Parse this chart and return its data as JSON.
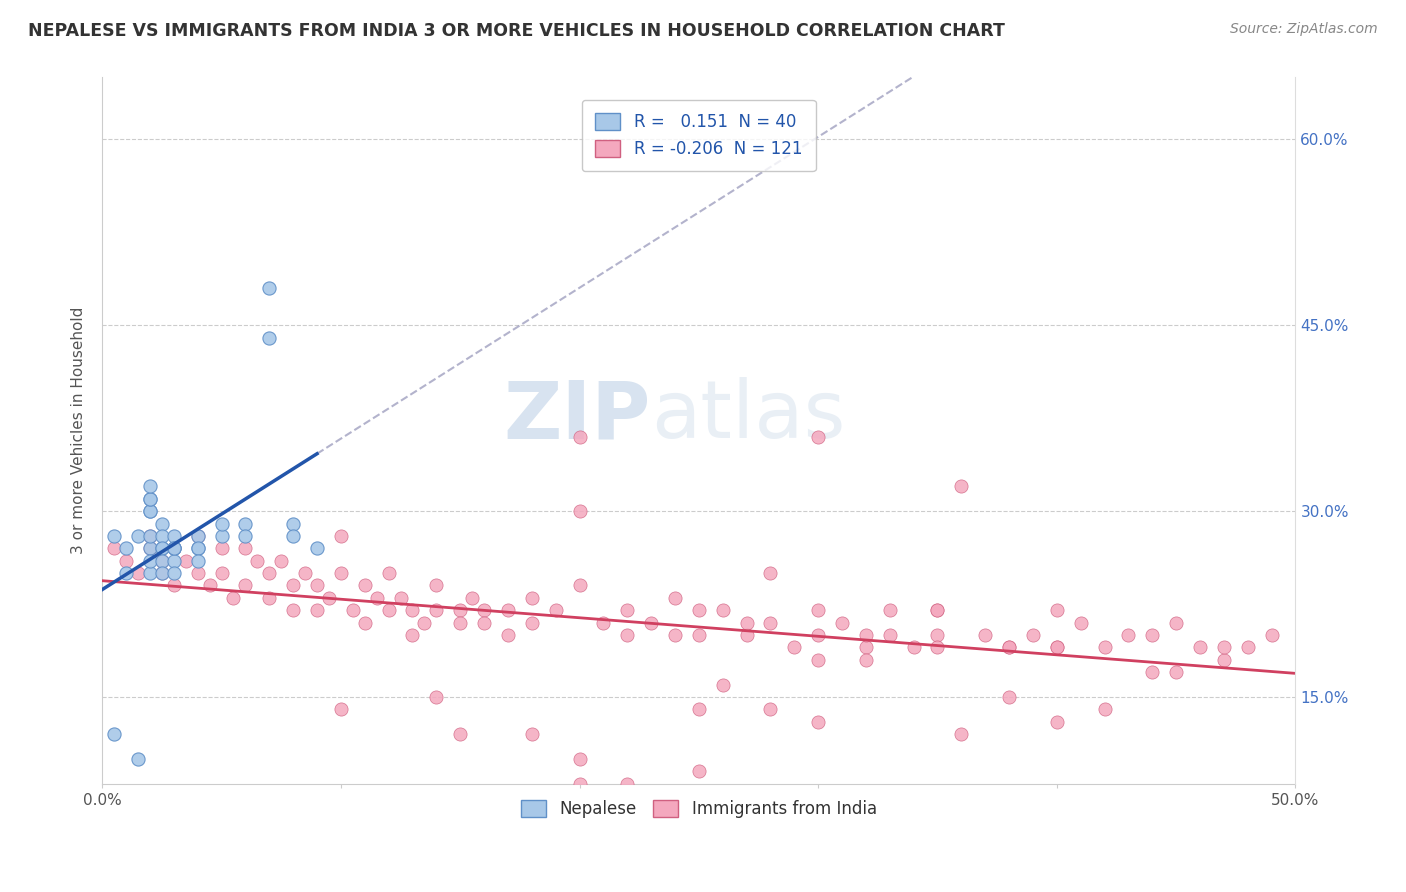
{
  "title": "NEPALESE VS IMMIGRANTS FROM INDIA 3 OR MORE VEHICLES IN HOUSEHOLD CORRELATION CHART",
  "source": "Source: ZipAtlas.com",
  "ylabel": "3 or more Vehicles in Household",
  "x_min": 0.0,
  "x_max": 0.5,
  "y_min": 0.08,
  "y_max": 0.65,
  "x_ticks": [
    0.0,
    0.1,
    0.2,
    0.3,
    0.4,
    0.5
  ],
  "x_tick_labels": [
    "0.0%",
    "",
    "",
    "",
    "",
    "50.0%"
  ],
  "y_ticks": [
    0.15,
    0.3,
    0.45,
    0.6
  ],
  "y_tick_labels": [
    "15.0%",
    "30.0%",
    "45.0%",
    "60.0%"
  ],
  "nepalese_color": "#a8c8e8",
  "india_color": "#f4a8be",
  "nepalese_edge_color": "#6090c8",
  "india_edge_color": "#d06080",
  "nepalese_trend_color": "#2255aa",
  "india_trend_color": "#d04060",
  "dashed_trend_color": "#a0a0c0",
  "r_nepalese": 0.151,
  "n_nepalese": 40,
  "r_india": -0.206,
  "n_india": 121,
  "legend_nepalese": "Nepalese",
  "legend_india": "Immigrants from India",
  "watermark_zip": "ZIP",
  "watermark_atlas": "atlas",
  "nepalese_x": [
    0.005,
    0.01,
    0.01,
    0.015,
    0.015,
    0.02,
    0.02,
    0.02,
    0.02,
    0.02,
    0.02,
    0.02,
    0.02,
    0.02,
    0.025,
    0.025,
    0.025,
    0.025,
    0.025,
    0.025,
    0.03,
    0.03,
    0.03,
    0.03,
    0.03,
    0.03,
    0.04,
    0.04,
    0.04,
    0.04,
    0.05,
    0.05,
    0.06,
    0.06,
    0.07,
    0.07,
    0.08,
    0.08,
    0.09,
    0.005
  ],
  "nepalese_y": [
    0.28,
    0.25,
    0.27,
    0.28,
    0.1,
    0.25,
    0.27,
    0.28,
    0.3,
    0.3,
    0.31,
    0.31,
    0.32,
    0.26,
    0.27,
    0.29,
    0.28,
    0.27,
    0.26,
    0.25,
    0.27,
    0.28,
    0.27,
    0.26,
    0.25,
    0.27,
    0.27,
    0.28,
    0.27,
    0.26,
    0.28,
    0.29,
    0.29,
    0.28,
    0.48,
    0.44,
    0.29,
    0.28,
    0.27,
    0.12
  ],
  "india_x": [
    0.005,
    0.01,
    0.015,
    0.02,
    0.02,
    0.025,
    0.025,
    0.03,
    0.03,
    0.035,
    0.04,
    0.04,
    0.045,
    0.05,
    0.05,
    0.055,
    0.06,
    0.06,
    0.065,
    0.07,
    0.07,
    0.075,
    0.08,
    0.08,
    0.085,
    0.09,
    0.09,
    0.095,
    0.1,
    0.1,
    0.105,
    0.11,
    0.11,
    0.115,
    0.12,
    0.12,
    0.125,
    0.13,
    0.13,
    0.135,
    0.14,
    0.14,
    0.15,
    0.15,
    0.155,
    0.16,
    0.16,
    0.17,
    0.17,
    0.18,
    0.18,
    0.19,
    0.2,
    0.2,
    0.21,
    0.22,
    0.22,
    0.23,
    0.24,
    0.24,
    0.25,
    0.25,
    0.26,
    0.27,
    0.27,
    0.28,
    0.29,
    0.3,
    0.3,
    0.31,
    0.32,
    0.33,
    0.33,
    0.34,
    0.35,
    0.36,
    0.37,
    0.38,
    0.39,
    0.4,
    0.4,
    0.41,
    0.42,
    0.43,
    0.44,
    0.45,
    0.46,
    0.47,
    0.48,
    0.49,
    0.1,
    0.15,
    0.2,
    0.25,
    0.3,
    0.35,
    0.2,
    0.3,
    0.35,
    0.4,
    0.25,
    0.35,
    0.4,
    0.45,
    0.3,
    0.38,
    0.42,
    0.47,
    0.28,
    0.32,
    0.22,
    0.18,
    0.14,
    0.2,
    0.26,
    0.32,
    0.38,
    0.44,
    0.2,
    0.28,
    0.36
  ],
  "india_y": [
    0.27,
    0.26,
    0.25,
    0.28,
    0.27,
    0.26,
    0.25,
    0.27,
    0.24,
    0.26,
    0.25,
    0.28,
    0.24,
    0.27,
    0.25,
    0.23,
    0.27,
    0.24,
    0.26,
    0.25,
    0.23,
    0.26,
    0.24,
    0.22,
    0.25,
    0.24,
    0.22,
    0.23,
    0.28,
    0.25,
    0.22,
    0.24,
    0.21,
    0.23,
    0.25,
    0.22,
    0.23,
    0.22,
    0.2,
    0.21,
    0.24,
    0.22,
    0.22,
    0.21,
    0.23,
    0.22,
    0.21,
    0.22,
    0.2,
    0.23,
    0.21,
    0.22,
    0.3,
    0.24,
    0.21,
    0.22,
    0.2,
    0.21,
    0.2,
    0.23,
    0.22,
    0.2,
    0.22,
    0.2,
    0.21,
    0.21,
    0.19,
    0.2,
    0.22,
    0.21,
    0.19,
    0.2,
    0.22,
    0.19,
    0.2,
    0.32,
    0.2,
    0.19,
    0.2,
    0.22,
    0.19,
    0.21,
    0.19,
    0.2,
    0.2,
    0.21,
    0.19,
    0.18,
    0.19,
    0.2,
    0.14,
    0.12,
    0.36,
    0.14,
    0.13,
    0.22,
    0.08,
    0.18,
    0.19,
    0.13,
    0.09,
    0.22,
    0.19,
    0.17,
    0.36,
    0.19,
    0.14,
    0.19,
    0.25,
    0.2,
    0.08,
    0.12,
    0.15,
    0.07,
    0.16,
    0.18,
    0.15,
    0.17,
    0.1,
    0.14,
    0.12
  ]
}
